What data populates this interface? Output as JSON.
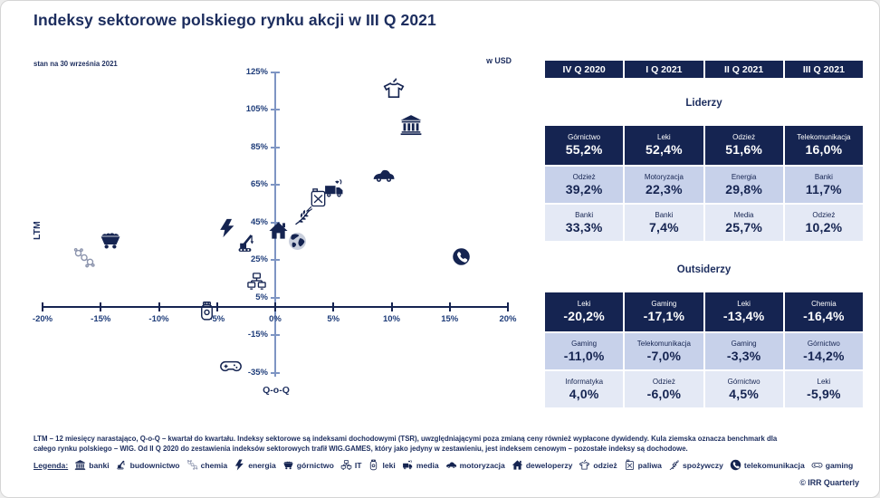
{
  "page": {
    "title": "Indeksy sektorowe polskiego rynku akcji w III Q 2021",
    "subtitle_left": "stan na 30 września 2021",
    "currency_note": "w USD",
    "copyright": "© IRR Quarterly"
  },
  "chart_data": {
    "type": "scatter",
    "xlabel": "Q-o-Q",
    "ylabel": "LTM",
    "xlim": [
      -20,
      20
    ],
    "ylim": [
      -35,
      125
    ],
    "x_ticks": [
      -20,
      -15,
      -10,
      -5,
      0,
      5,
      10,
      15,
      20
    ],
    "y_ticks": [
      125,
      105,
      85,
      65,
      45,
      25,
      5,
      -15,
      -35
    ],
    "tick_unit": "%",
    "grid": false,
    "points": [
      {
        "sector": "chemia",
        "icon": "chemia-icon",
        "x": -16.4,
        "y": 26
      },
      {
        "sector": "górnictwo",
        "icon": "gornictwo-icon",
        "x": -14.2,
        "y": 36
      },
      {
        "sector": "leki",
        "icon": "leki-icon",
        "x": -5.9,
        "y": -2
      },
      {
        "sector": "energia",
        "icon": "energia-icon",
        "x": -4.1,
        "y": 42
      },
      {
        "sector": "gaming",
        "icon": "gaming-icon",
        "x": -3.8,
        "y": -31
      },
      {
        "sector": "budownictwo",
        "icon": "budownictwo-icon",
        "x": -2.4,
        "y": 34
      },
      {
        "sector": "IT",
        "icon": "it-icon",
        "x": -1.6,
        "y": 14
      },
      {
        "sector": "deweloperzy",
        "icon": "deweloperzy-icon",
        "x": 0.3,
        "y": 41
      },
      {
        "sector": "WIG benchmark",
        "icon": "globe-icon",
        "x": 1.9,
        "y": 35
      },
      {
        "sector": "spożywczy",
        "icon": "spozywczy-icon",
        "x": 2.4,
        "y": 49
      },
      {
        "sector": "paliwa",
        "icon": "paliwa-icon",
        "x": 3.7,
        "y": 58
      },
      {
        "sector": "media",
        "icon": "media-icon",
        "x": 5.1,
        "y": 63
      },
      {
        "sector": "motoryzacja",
        "icon": "motoryzacja-icon",
        "x": 9.3,
        "y": 70
      },
      {
        "sector": "odzież",
        "icon": "odziez-icon",
        "x": 10.2,
        "y": 116
      },
      {
        "sector": "banki",
        "icon": "banki-icon",
        "x": 11.7,
        "y": 97
      },
      {
        "sector": "telekomunikacja",
        "icon": "telekomunikacja-icon",
        "x": 16.0,
        "y": 27
      }
    ]
  },
  "table": {
    "quarters": [
      "IV Q 2020",
      "I Q 2021",
      "II Q 2021",
      "III Q 2021"
    ],
    "sections": [
      {
        "title": "Liderzy",
        "rows": [
          [
            {
              "sector": "Górnictwo",
              "value": "55,2%"
            },
            {
              "sector": "Leki",
              "value": "52,4%"
            },
            {
              "sector": "Odzież",
              "value": "51,6%"
            },
            {
              "sector": "Telekomunikacja",
              "value": "16,0%"
            }
          ],
          [
            {
              "sector": "Odzież",
              "value": "39,2%"
            },
            {
              "sector": "Motoryzacja",
              "value": "22,3%"
            },
            {
              "sector": "Energia",
              "value": "29,8%"
            },
            {
              "sector": "Banki",
              "value": "11,7%"
            }
          ],
          [
            {
              "sector": "Banki",
              "value": "33,3%"
            },
            {
              "sector": "Banki",
              "value": "7,4%"
            },
            {
              "sector": "Media",
              "value": "25,7%"
            },
            {
              "sector": "Odzież",
              "value": "10,2%"
            }
          ]
        ]
      },
      {
        "title": "Outsiderzy",
        "rows": [
          [
            {
              "sector": "Leki",
              "value": "-20,2%"
            },
            {
              "sector": "Gaming",
              "value": "-17,1%"
            },
            {
              "sector": "Leki",
              "value": "-13,4%"
            },
            {
              "sector": "Chemia",
              "value": "-16,4%"
            }
          ],
          [
            {
              "sector": "Gaming",
              "value": "-11,0%"
            },
            {
              "sector": "Telekomunikacja",
              "value": "-7,0%"
            },
            {
              "sector": "Gaming",
              "value": "-3,3%"
            },
            {
              "sector": "Górnictwo",
              "value": "-14,2%"
            }
          ],
          [
            {
              "sector": "Informatyka",
              "value": "4,0%"
            },
            {
              "sector": "Odzież",
              "value": "-6,0%"
            },
            {
              "sector": "Górnictwo",
              "value": "4,5%"
            },
            {
              "sector": "Leki",
              "value": "-5,9%"
            }
          ]
        ]
      }
    ]
  },
  "footnote": {
    "line1": "LTM – 12 miesięcy narastająco, Q-o-Q – kwartał do kwartału. Indeksy sektorowe są indeksami dochodowymi (TSR), uwzględniającymi poza zmianą ceny również wypłacone dywidendy. Kula ziemska oznacza benchmark dla",
    "line2": "całego rynku polskiego – WIG. Od II Q 2020 do zestawienia indeksów sektorowych trafił WIG.GAMES, który jako jedyny w zestawieniu, jest indeksem cenowym – pozostałe indeksy są dochodowe."
  },
  "legend": {
    "label": "Legenda:",
    "items": [
      {
        "name": "banki",
        "icon": "banki-icon"
      },
      {
        "name": "budownictwo",
        "icon": "budownictwo-icon"
      },
      {
        "name": "chemia",
        "icon": "chemia-icon"
      },
      {
        "name": "energia",
        "icon": "energia-icon"
      },
      {
        "name": "górnictwo",
        "icon": "gornictwo-icon"
      },
      {
        "name": "IT",
        "icon": "it-icon"
      },
      {
        "name": "leki",
        "icon": "leki-icon"
      },
      {
        "name": "media",
        "icon": "media-icon"
      },
      {
        "name": "motoryzacja",
        "icon": "motoryzacja-icon"
      },
      {
        "name": "deweloperzy",
        "icon": "deweloperzy-icon"
      },
      {
        "name": "odzież",
        "icon": "odziez-icon"
      },
      {
        "name": "paliwa",
        "icon": "paliwa-icon"
      },
      {
        "name": "spożywczy",
        "icon": "spozywczy-icon"
      },
      {
        "name": "telekomunikacja",
        "icon": "telekomunikacja-icon"
      },
      {
        "name": "gaming",
        "icon": "gaming-icon"
      }
    ]
  },
  "colors": {
    "navy": "#152451",
    "text_navy": "#1c2d5e",
    "row_mid": "#c7d1ea",
    "row_light": "#e4e9f5",
    "axis_steel": "#7e95c3",
    "axis_label": "#1f3d7a",
    "chemia_gray": "#8c94ad"
  }
}
